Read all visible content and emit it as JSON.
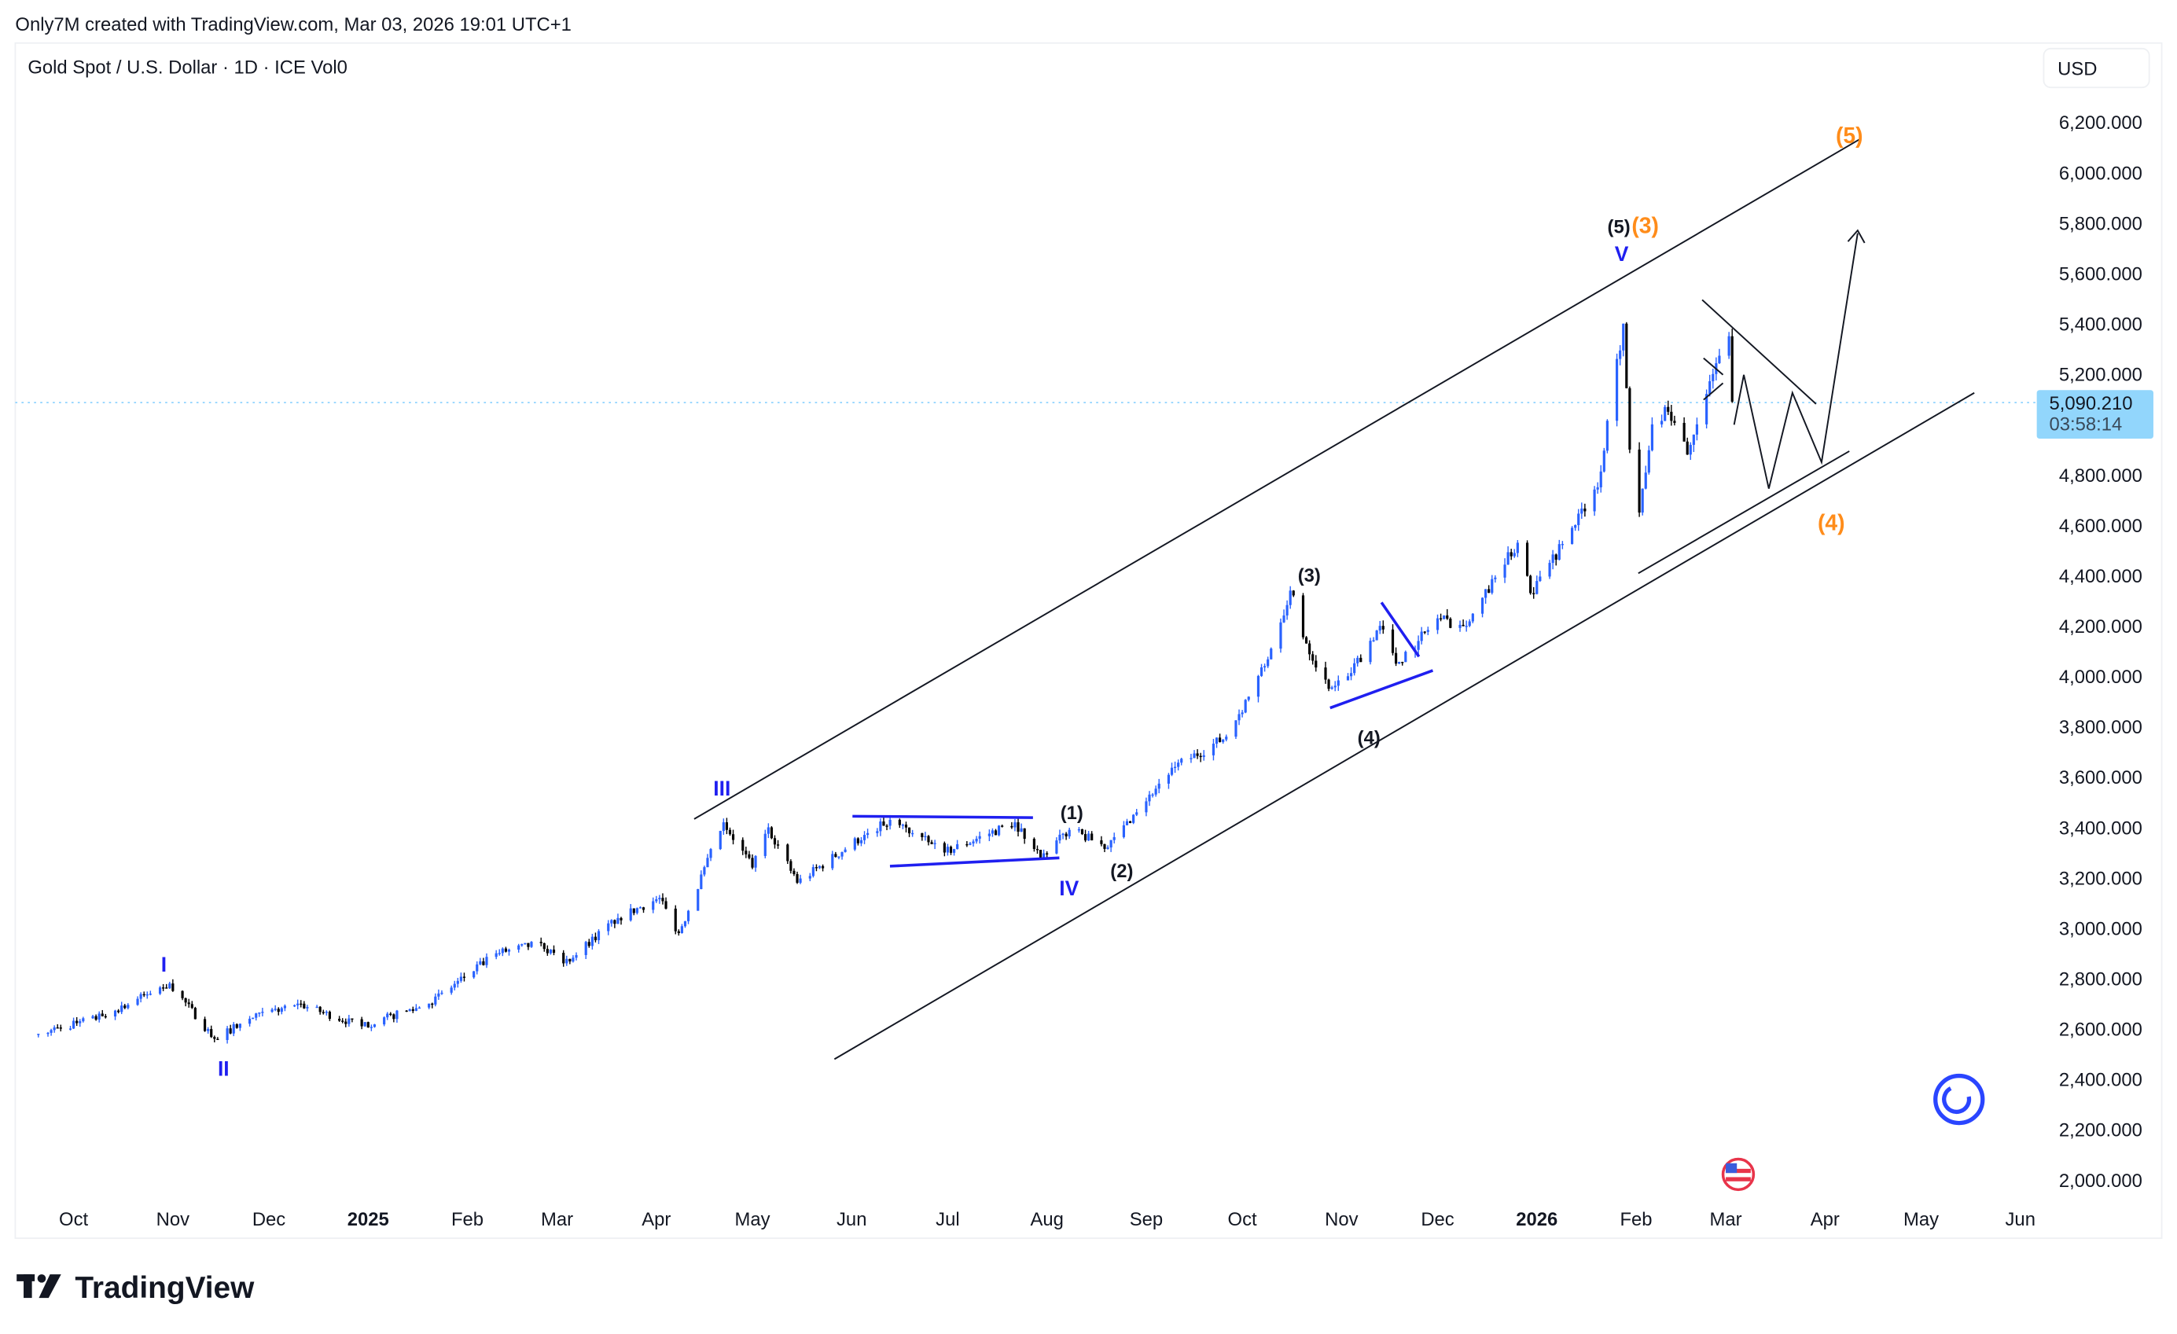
{
  "header": {
    "attribution": "Only7M created with TradingView.com, Mar 03, 2026 19:01 UTC+1",
    "symbol": "Gold Spot / U.S. Dollar · 1D · ICE  Vol0",
    "currency": "USD"
  },
  "last_price": {
    "value": "5,090.210",
    "countdown": "03:58:14"
  },
  "colors": {
    "up": "#2962ff",
    "down": "#000000",
    "wave_blue": "#1f1ff0",
    "wave_orange": "#ff8c1a",
    "price_tag": "#92d6fc"
  },
  "annotations": {
    "w1": "I",
    "w2": "II",
    "w3": "III",
    "w4": "IV",
    "w5": "V",
    "s1": "(1)",
    "s2": "(2)",
    "s3": "(3)",
    "s4": "(4)",
    "s5": "(5)",
    "o3": "(3)",
    "o4": "(4)",
    "o5": "(5)"
  },
  "brand": "TradingView",
  "icons": [
    "tradingview-logo-icon",
    "replay-circle-icon",
    "us-flag-event-icon"
  ],
  "chart_data": {
    "type": "candlestick",
    "title": "Gold Spot / U.S. Dollar · 1D · ICE",
    "y_axis": {
      "ylim": [
        1950,
        6350
      ],
      "ticks": [
        "6,200.000",
        "6,000.000",
        "5,800.000",
        "5,600.000",
        "5,400.000",
        "5,200.000",
        "4,800.000",
        "4,600.000",
        "4,400.000",
        "4,200.000",
        "4,000.000",
        "3,800.000",
        "3,600.000",
        "3,400.000",
        "3,200.000",
        "3,000.000",
        "2,800.000",
        "2,600.000",
        "2,400.000",
        "2,200.000",
        "2,000.000"
      ],
      "scale": "linear",
      "side": "right"
    },
    "x_axis": {
      "range": [
        "2024-09-20",
        "2026-06-05"
      ],
      "ticks": [
        "Oct",
        "Nov",
        "Dec",
        "2025",
        "Feb",
        "Mar",
        "Apr",
        "May",
        "Jun",
        "Jul",
        "Aug",
        "Sep",
        "Oct",
        "Nov",
        "Dec",
        "2026",
        "Feb",
        "Mar",
        "Apr",
        "May",
        "Jun"
      ]
    },
    "grid": false,
    "approx_closes": [
      [
        "2024-09-20",
        2580
      ],
      [
        "2024-10-10",
        2650
      ],
      [
        "2024-10-31",
        2780
      ],
      [
        "2024-11-14",
        2560
      ],
      [
        "2024-11-25",
        2640
      ],
      [
        "2024-12-10",
        2700
      ],
      [
        "2024-12-30",
        2610
      ],
      [
        "2025-01-20",
        2700
      ],
      [
        "2025-02-10",
        2900
      ],
      [
        "2025-02-24",
        2940
      ],
      [
        "2025-03-03",
        2860
      ],
      [
        "2025-03-20",
        3040
      ],
      [
        "2025-04-02",
        3120
      ],
      [
        "2025-04-08",
        2980
      ],
      [
        "2025-04-22",
        3420
      ],
      [
        "2025-05-01",
        3240
      ],
      [
        "2025-05-06",
        3400
      ],
      [
        "2025-05-15",
        3180
      ],
      [
        "2025-06-05",
        3370
      ],
      [
        "2025-06-13",
        3430
      ],
      [
        "2025-06-30",
        3300
      ],
      [
        "2025-07-22",
        3420
      ],
      [
        "2025-07-30",
        3280
      ],
      [
        "2025-08-08",
        3390
      ],
      [
        "2025-08-20",
        3320
      ],
      [
        "2025-09-02",
        3530
      ],
      [
        "2025-09-10",
        3640
      ],
      [
        "2025-09-26",
        3760
      ],
      [
        "2025-10-08",
        4040
      ],
      [
        "2025-10-16",
        4340
      ],
      [
        "2025-10-21",
        4130
      ],
      [
        "2025-10-28",
        3950
      ],
      [
        "2025-11-03",
        4000
      ],
      [
        "2025-11-13",
        4200
      ],
      [
        "2025-11-18",
        4050
      ],
      [
        "2025-11-25",
        4140
      ],
      [
        "2025-12-01",
        4230
      ],
      [
        "2025-12-10",
        4200
      ],
      [
        "2025-12-26",
        4530
      ],
      [
        "2025-12-30",
        4330
      ],
      [
        "2026-01-05",
        4450
      ],
      [
        "2026-01-13",
        4600
      ],
      [
        "2026-01-20",
        4750
      ],
      [
        "2026-01-28",
        5400
      ],
      [
        "2026-01-30",
        4900
      ],
      [
        "2026-02-02",
        4650
      ],
      [
        "2026-02-06",
        5000
      ],
      [
        "2026-02-11",
        5050
      ],
      [
        "2026-02-17",
        4880
      ],
      [
        "2026-02-20",
        5000
      ],
      [
        "2026-02-25",
        5200
      ],
      [
        "2026-03-02",
        5350
      ],
      [
        "2026-03-03",
        5090.21
      ]
    ],
    "last": 5090.21
  }
}
